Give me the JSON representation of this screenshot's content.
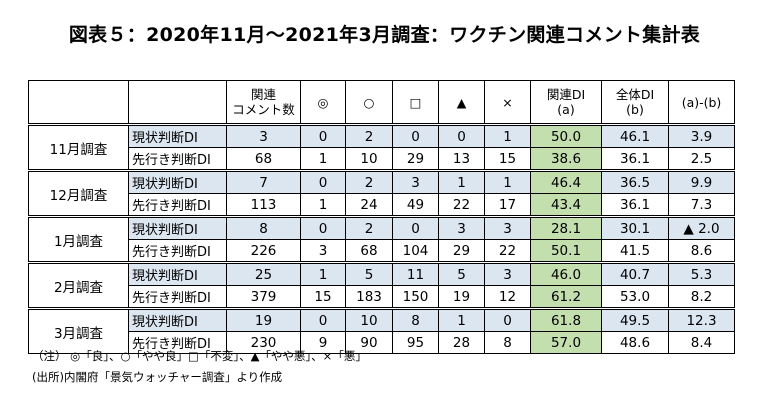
{
  "title": "図表５：2020年11月～2021年3月調査：ワクチン関連コメント集計表",
  "header": {
    "count_line1": "関連",
    "count_line2": "コメント数",
    "c1": "◎",
    "c2": "○",
    "c3": "□",
    "c4": "▲",
    "c5": "×",
    "rel_line1": "関連DI",
    "rel_line2": "(a)",
    "all_line1": "全体DI",
    "all_line2": "(b)",
    "diff": "(a)-(b)"
  },
  "groups": [
    {
      "month": "11月調査",
      "rows": [
        {
          "kind": "現状判断DI",
          "count": "3",
          "c1": "0",
          "c2": "2",
          "c3": "0",
          "c4": "0",
          "c5": "1",
          "rel": "50.0",
          "all": "46.1",
          "diff": "3.9"
        },
        {
          "kind": "先行き判断DI",
          "count": "68",
          "c1": "1",
          "c2": "10",
          "c3": "29",
          "c4": "13",
          "c5": "15",
          "rel": "38.6",
          "all": "36.1",
          "diff": "2.5"
        }
      ]
    },
    {
      "month": "12月調査",
      "rows": [
        {
          "kind": "現状判断DI",
          "count": "7",
          "c1": "0",
          "c2": "2",
          "c3": "3",
          "c4": "1",
          "c5": "1",
          "rel": "46.4",
          "all": "36.5",
          "diff": "9.9"
        },
        {
          "kind": "先行き判断DI",
          "count": "113",
          "c1": "1",
          "c2": "24",
          "c3": "49",
          "c4": "22",
          "c5": "17",
          "rel": "43.4",
          "all": "36.1",
          "diff": "7.3"
        }
      ]
    },
    {
      "month": "1月調査",
      "rows": [
        {
          "kind": "現状判断DI",
          "count": "8",
          "c1": "0",
          "c2": "2",
          "c3": "0",
          "c4": "3",
          "c5": "3",
          "rel": "28.1",
          "all": "30.1",
          "diff": "▲ 2.0"
        },
        {
          "kind": "先行き判断DI",
          "count": "226",
          "c1": "3",
          "c2": "68",
          "c3": "104",
          "c4": "29",
          "c5": "22",
          "rel": "50.1",
          "all": "41.5",
          "diff": "8.6"
        }
      ]
    },
    {
      "month": "2月調査",
      "rows": [
        {
          "kind": "現状判断DI",
          "count": "25",
          "c1": "1",
          "c2": "5",
          "c3": "11",
          "c4": "5",
          "c5": "3",
          "rel": "46.0",
          "all": "40.7",
          "diff": "5.3"
        },
        {
          "kind": "先行き判断DI",
          "count": "379",
          "c1": "15",
          "c2": "183",
          "c3": "150",
          "c4": "19",
          "c5": "12",
          "rel": "61.2",
          "all": "53.0",
          "diff": "8.2"
        }
      ]
    },
    {
      "month": "3月調査",
      "rows": [
        {
          "kind": "現状判断DI",
          "count": "19",
          "c1": "0",
          "c2": "10",
          "c3": "8",
          "c4": "1",
          "c5": "0",
          "rel": "61.8",
          "all": "49.5",
          "diff": "12.3"
        },
        {
          "kind": "先行き判断DI",
          "count": "230",
          "c1": "9",
          "c2": "90",
          "c3": "95",
          "c4": "28",
          "c5": "8",
          "rel": "57.0",
          "all": "48.6",
          "diff": "8.4"
        }
      ]
    }
  ],
  "colors": {
    "current_row_bg": "#dce6f1",
    "related_di_highlight": "#c4dfae"
  },
  "notes": {
    "note1": "（注） ◎「良」、○「やや良」□「不変」、▲「やや悪」、×「悪」",
    "note2": "(出所)内閣府「景気ウォッチャー調査」より作成"
  }
}
